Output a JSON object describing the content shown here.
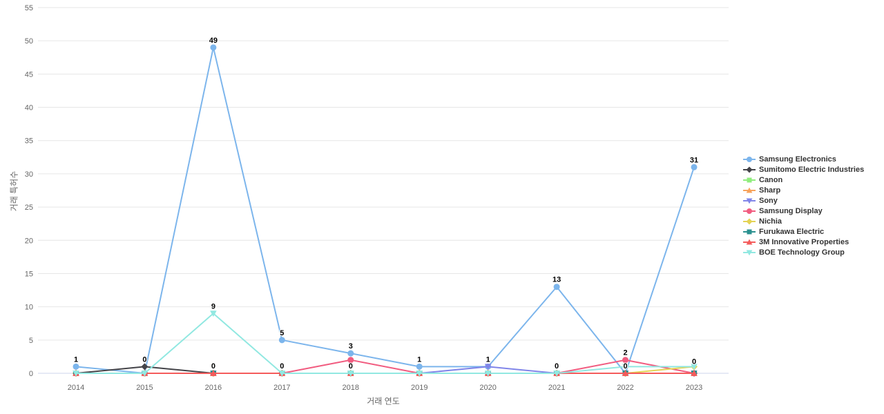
{
  "chart_data": {
    "type": "line",
    "title": "",
    "xlabel": "거래 연도",
    "ylabel": "거래 특허수",
    "x": [
      "2014",
      "2015",
      "2016",
      "2017",
      "2018",
      "2019",
      "2020",
      "2021",
      "2022",
      "2023"
    ],
    "ylim": [
      0,
      55
    ],
    "ytick_step": 5,
    "grid": "horizontal",
    "legend_position": "right",
    "axis_line_color": "#ccd6eb",
    "grid_color": "#e6e6e6",
    "tick_label_color": "#666666",
    "data_label_color": "#000000",
    "series": [
      {
        "name": "Samsung Electronics",
        "color": "#7cb5ec",
        "marker": "circle",
        "values": [
          1,
          0,
          49,
          5,
          3,
          1,
          1,
          13,
          0,
          31
        ]
      },
      {
        "name": "Sumitomo Electric Industries",
        "color": "#434348",
        "marker": "diamond",
        "values": [
          0,
          1,
          0,
          0,
          0,
          0,
          0,
          0,
          0,
          0
        ]
      },
      {
        "name": "Canon",
        "color": "#90ed7d",
        "marker": "square",
        "values": [
          0,
          0,
          0,
          0,
          0,
          0,
          0,
          0,
          0,
          0
        ]
      },
      {
        "name": "Sharp",
        "color": "#f7a35c",
        "marker": "triangle",
        "values": [
          0,
          0,
          0,
          0,
          0,
          0,
          0,
          0,
          0,
          0
        ]
      },
      {
        "name": "Sony",
        "color": "#8085e9",
        "marker": "triangle-down",
        "values": [
          0,
          0,
          0,
          0,
          0,
          0,
          1,
          0,
          0,
          0
        ]
      },
      {
        "name": "Samsung Display",
        "color": "#f15c80",
        "marker": "circle",
        "values": [
          0,
          0,
          0,
          0,
          2,
          0,
          0,
          0,
          2,
          0
        ]
      },
      {
        "name": "Nichia",
        "color": "#e4d354",
        "marker": "diamond",
        "values": [
          0,
          0,
          0,
          0,
          0,
          0,
          0,
          0,
          0,
          1
        ]
      },
      {
        "name": "Furukawa Electric",
        "color": "#2b908f",
        "marker": "square",
        "values": [
          0,
          0,
          0,
          0,
          0,
          0,
          0,
          0,
          0,
          0
        ]
      },
      {
        "name": "3M Innovative Properties",
        "color": "#f45b5b",
        "marker": "triangle",
        "values": [
          0,
          0,
          0,
          0,
          0,
          0,
          0,
          0,
          0,
          0
        ]
      },
      {
        "name": "BOE Technology Group",
        "color": "#91e8e1",
        "marker": "triangle-down",
        "values": [
          0,
          0,
          9,
          0,
          0,
          0,
          0,
          0,
          1,
          1
        ]
      }
    ],
    "visible_point_labels": [
      {
        "x": "2014",
        "text": "1",
        "v": 1
      },
      {
        "x": "2015",
        "text": "0",
        "v": 1
      },
      {
        "x": "2016",
        "text": "49",
        "v": 49
      },
      {
        "x": "2016",
        "text": "9",
        "v": 9
      },
      {
        "x": "2016",
        "text": "0",
        "v": 0
      },
      {
        "x": "2017",
        "text": "5",
        "v": 5
      },
      {
        "x": "2017",
        "text": "0",
        "v": 0
      },
      {
        "x": "2018",
        "text": "3",
        "v": 3
      },
      {
        "x": "2018",
        "text": "0",
        "v": 0
      },
      {
        "x": "2019",
        "text": "1",
        "v": 1
      },
      {
        "x": "2020",
        "text": "1",
        "v": 1
      },
      {
        "x": "2021",
        "text": "13",
        "v": 13
      },
      {
        "x": "2021",
        "text": "0",
        "v": 0
      },
      {
        "x": "2022",
        "text": "2",
        "v": 2
      },
      {
        "x": "2022",
        "text": "0",
        "v": 0
      },
      {
        "x": "2023",
        "text": "31",
        "v": 31
      },
      {
        "x": "2023",
        "text": "0",
        "v": 0.7
      }
    ]
  }
}
